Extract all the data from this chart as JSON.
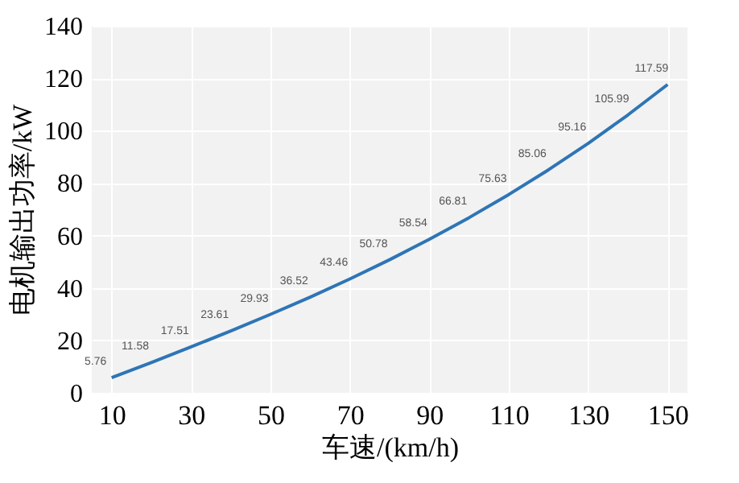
{
  "chart_data": {
    "type": "line",
    "xlabel": "车速/(km/h)",
    "ylabel": "电机输出功率/kW",
    "x": [
      10,
      20,
      30,
      40,
      50,
      60,
      70,
      80,
      90,
      100,
      110,
      120,
      130,
      140,
      150
    ],
    "series": [
      {
        "color": "#2e75b6",
        "values": [
          5.76,
          11.58,
          17.51,
          23.61,
          29.93,
          36.52,
          43.46,
          50.78,
          58.54,
          66.81,
          75.63,
          85.06,
          95.16,
          105.99,
          117.59
        ]
      }
    ],
    "xlim": [
      5,
      155
    ],
    "xticks": [
      10,
      30,
      50,
      70,
      90,
      110,
      130,
      150
    ],
    "ylim": [
      0,
      140
    ],
    "yticks": [
      0,
      20,
      40,
      60,
      80,
      100,
      120,
      140
    ],
    "grid": true,
    "data_labels": true,
    "marker": "none",
    "line_style": "solid"
  }
}
